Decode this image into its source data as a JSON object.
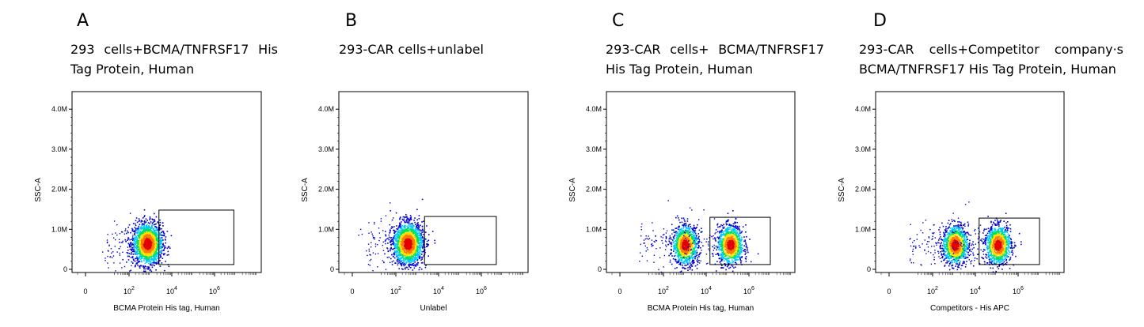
{
  "chart_data": [
    {
      "type": "scatter",
      "panel_letter": "A",
      "title": "293 cells+BCMA/TNFRSF17 His Tag Protein, Human",
      "xlabel": "BCMA Protein His tag, Human",
      "ylabel": "SSC-A",
      "x_scale": "biexponential",
      "x_ticks": [
        {
          "value": 0,
          "text": "0"
        },
        {
          "value": 100,
          "base": "10",
          "exp": "2"
        },
        {
          "value": 10000,
          "base": "10",
          "exp": "4"
        },
        {
          "value": 1000000,
          "base": "10",
          "exp": "6"
        }
      ],
      "y_ticks": [
        "0",
        "1.0M",
        "2.0M",
        "3.0M",
        "4.0M"
      ],
      "ylim": [
        0,
        4300000
      ],
      "populations": [
        {
          "x_center": 700,
          "y_center": 650000,
          "x_spread_decades": 0.35,
          "y_spread": 260000,
          "count": 1800
        }
      ],
      "gate": {
        "x_min": 2500,
        "x_max": 8000000,
        "y_min": 120000,
        "y_max": 1480000
      }
    },
    {
      "type": "scatter",
      "panel_letter": "B",
      "title": "293-CAR cells+unlabel",
      "xlabel": "Unlabel",
      "ylabel": "SSC-A",
      "x_scale": "biexponential",
      "x_ticks": [
        {
          "value": 0,
          "text": "0"
        },
        {
          "value": 100,
          "base": "10",
          "exp": "2"
        },
        {
          "value": 10000,
          "base": "10",
          "exp": "4"
        },
        {
          "value": 1000000,
          "base": "10",
          "exp": "6"
        }
      ],
      "y_ticks": [
        "0",
        "1.0M",
        "2.0M",
        "3.0M",
        "4.0M"
      ],
      "ylim": [
        0,
        4300000
      ],
      "populations": [
        {
          "x_center": 350,
          "y_center": 650000,
          "x_spread_decades": 0.35,
          "y_spread": 260000,
          "count": 1800
        }
      ],
      "gate": {
        "x_min": 2200,
        "x_max": 5000000,
        "y_min": 120000,
        "y_max": 1320000
      }
    },
    {
      "type": "scatter",
      "panel_letter": "C",
      "title": "293-CAR cells+ BCMA/TNFRSF17 His Tag Protein, Human",
      "xlabel": "BCMA Protein His tag, Human",
      "ylabel": "SSC-A",
      "x_scale": "biexponential",
      "x_ticks": [
        {
          "value": 0,
          "text": "0"
        },
        {
          "value": 100,
          "base": "10",
          "exp": "2"
        },
        {
          "value": 10000,
          "base": "10",
          "exp": "4"
        },
        {
          "value": 1000000,
          "base": "10",
          "exp": "6"
        }
      ],
      "y_ticks": [
        "0",
        "1.0M",
        "2.0M",
        "3.0M",
        "4.0M"
      ],
      "ylim": [
        0,
        4300000
      ],
      "populations": [
        {
          "x_center": 1000,
          "y_center": 620000,
          "x_spread_decades": 0.3,
          "y_spread": 240000,
          "count": 1100
        },
        {
          "x_center": 130000,
          "y_center": 620000,
          "x_spread_decades": 0.3,
          "y_spread": 240000,
          "count": 1100
        }
      ],
      "gate": {
        "x_min": 15000,
        "x_max": 10000000,
        "y_min": 120000,
        "y_max": 1300000
      }
    },
    {
      "type": "scatter",
      "panel_letter": "D",
      "title": "293-CAR cells+Competitor company·s BCMA/TNFRSF17 His Tag Protein, Human",
      "xlabel": "Competitors - His APC",
      "ylabel": "SSC-A",
      "x_scale": "biexponential",
      "x_ticks": [
        {
          "value": 0,
          "text": "0"
        },
        {
          "value": 100,
          "base": "10",
          "exp": "2"
        },
        {
          "value": 10000,
          "base": "10",
          "exp": "4"
        },
        {
          "value": 1000000,
          "base": "10",
          "exp": "6"
        }
      ],
      "y_ticks": [
        "0",
        "1.0M",
        "2.0M",
        "3.0M",
        "4.0M"
      ],
      "ylim": [
        0,
        4300000
      ],
      "populations": [
        {
          "x_center": 1100,
          "y_center": 620000,
          "x_spread_decades": 0.3,
          "y_spread": 240000,
          "count": 1100
        },
        {
          "x_center": 110000,
          "y_center": 620000,
          "x_spread_decades": 0.3,
          "y_spread": 240000,
          "count": 1100
        }
      ],
      "gate": {
        "x_min": 15000,
        "x_max": 10000000,
        "y_min": 120000,
        "y_max": 1280000
      }
    }
  ],
  "colors": {
    "density_low": "#0000cc",
    "density_mid_low": "#00c8ff",
    "density_mid": "#00e060",
    "density_mid_high": "#ffe000",
    "density_high": "#e00000",
    "axis": "#000000"
  }
}
